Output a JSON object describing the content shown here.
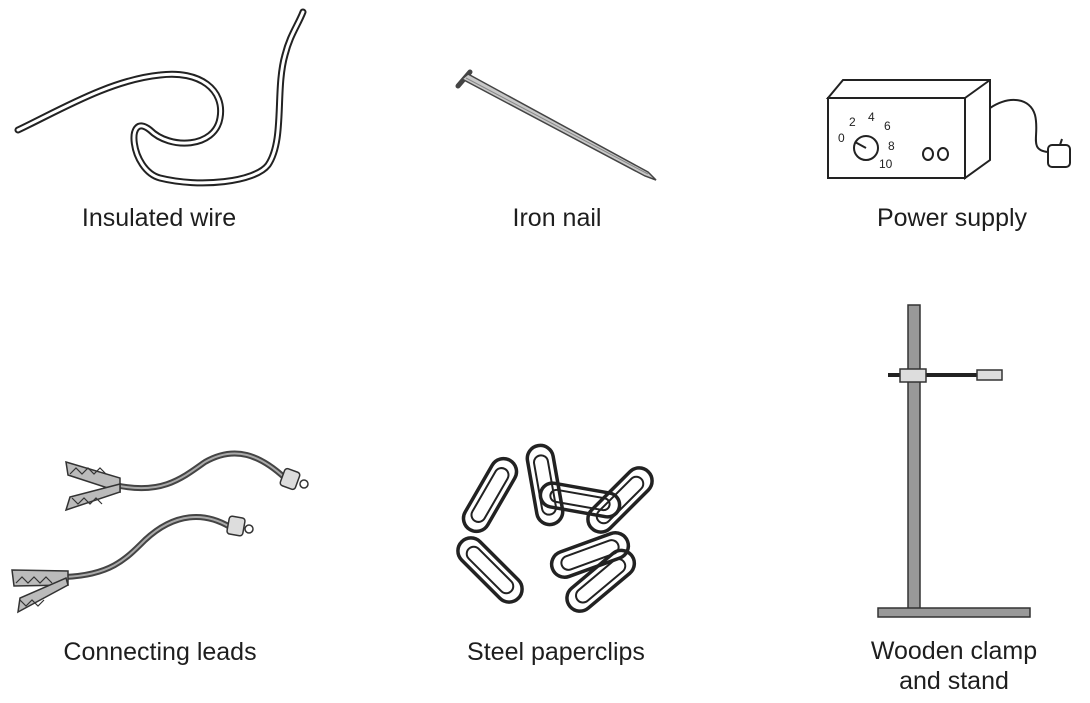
{
  "items": {
    "insulated_wire": {
      "label": "Insulated wire"
    },
    "iron_nail": {
      "label": "Iron nail"
    },
    "power_supply": {
      "label": "Power supply",
      "dial_numbers": [
        "0",
        "2",
        "4",
        "6",
        "8",
        "10"
      ]
    },
    "connecting_leads": {
      "label": "Connecting leads"
    },
    "steel_paperclips": {
      "label": "Steel paperclips"
    },
    "clamp_stand": {
      "label_line1": "Wooden clamp",
      "label_line2": "and stand"
    }
  },
  "colors": {
    "line": "#222222",
    "grey": "#8c8c8c",
    "light_grey": "#d8d8d8"
  }
}
